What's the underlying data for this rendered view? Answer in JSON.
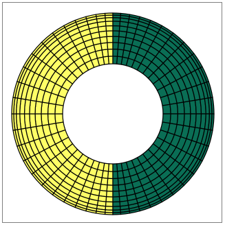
{
  "diagram": {
    "type": "annular-mesh",
    "colors": {
      "left_half": "#FFFF66",
      "right_half": "#0A6E55",
      "grid_lines": "#000000",
      "frame": "#7F7F7F",
      "background": "#FFFFFF"
    },
    "halves": [
      {
        "side": "left",
        "color_key": "left_half"
      },
      {
        "side": "right",
        "color_key": "right_half"
      }
    ]
  }
}
